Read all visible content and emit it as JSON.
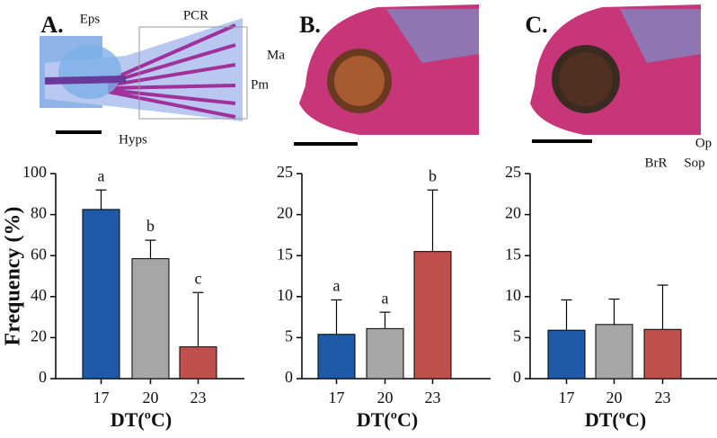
{
  "figure": {
    "panels": [
      {
        "label": "A.",
        "photo_labels": [
          "Eps",
          "PCR",
          "Hyps"
        ]
      },
      {
        "label": "B.",
        "photo_labels": [
          "Ma",
          "Pm"
        ]
      },
      {
        "label": "C.",
        "photo_labels": [
          "BrR",
          "Sop",
          "Op"
        ]
      }
    ]
  },
  "chart_data": [
    {
      "type": "bar",
      "y_label": "Frequency (%)",
      "x_label": "DT(ºC)",
      "categories": [
        "17",
        "20",
        "23"
      ],
      "values": [
        82.5,
        58.5,
        15.5
      ],
      "errors": [
        9.5,
        9,
        26.5
      ],
      "sig_labels": [
        "a",
        "b",
        "c"
      ],
      "colors": [
        "#1f5aa8",
        "#a6a6a6",
        "#c0504d"
      ],
      "ylim": [
        0,
        100
      ],
      "yticks": [
        0,
        20,
        40,
        60,
        80,
        100
      ]
    },
    {
      "type": "bar",
      "x_label": "DT(ºC)",
      "categories": [
        "17",
        "20",
        "23"
      ],
      "values": [
        5.4,
        6.1,
        15.5
      ],
      "errors": [
        4.2,
        2.0,
        7.5
      ],
      "sig_labels": [
        "a",
        "a",
        "b"
      ],
      "colors": [
        "#1f5aa8",
        "#a6a6a6",
        "#c0504d"
      ],
      "ylim": [
        0,
        25
      ],
      "yticks": [
        0,
        5,
        10,
        15,
        20,
        25
      ]
    },
    {
      "type": "bar",
      "x_label": "DT(ºC)",
      "categories": [
        "17",
        "20",
        "23"
      ],
      "values": [
        5.9,
        6.6,
        6.0
      ],
      "errors": [
        3.7,
        3.1,
        5.4
      ],
      "colors": [
        "#1f5aa8",
        "#a6a6a6",
        "#c0504d"
      ],
      "ylim": [
        0,
        25
      ],
      "yticks": [
        0,
        5,
        10,
        15,
        20,
        25
      ]
    }
  ]
}
